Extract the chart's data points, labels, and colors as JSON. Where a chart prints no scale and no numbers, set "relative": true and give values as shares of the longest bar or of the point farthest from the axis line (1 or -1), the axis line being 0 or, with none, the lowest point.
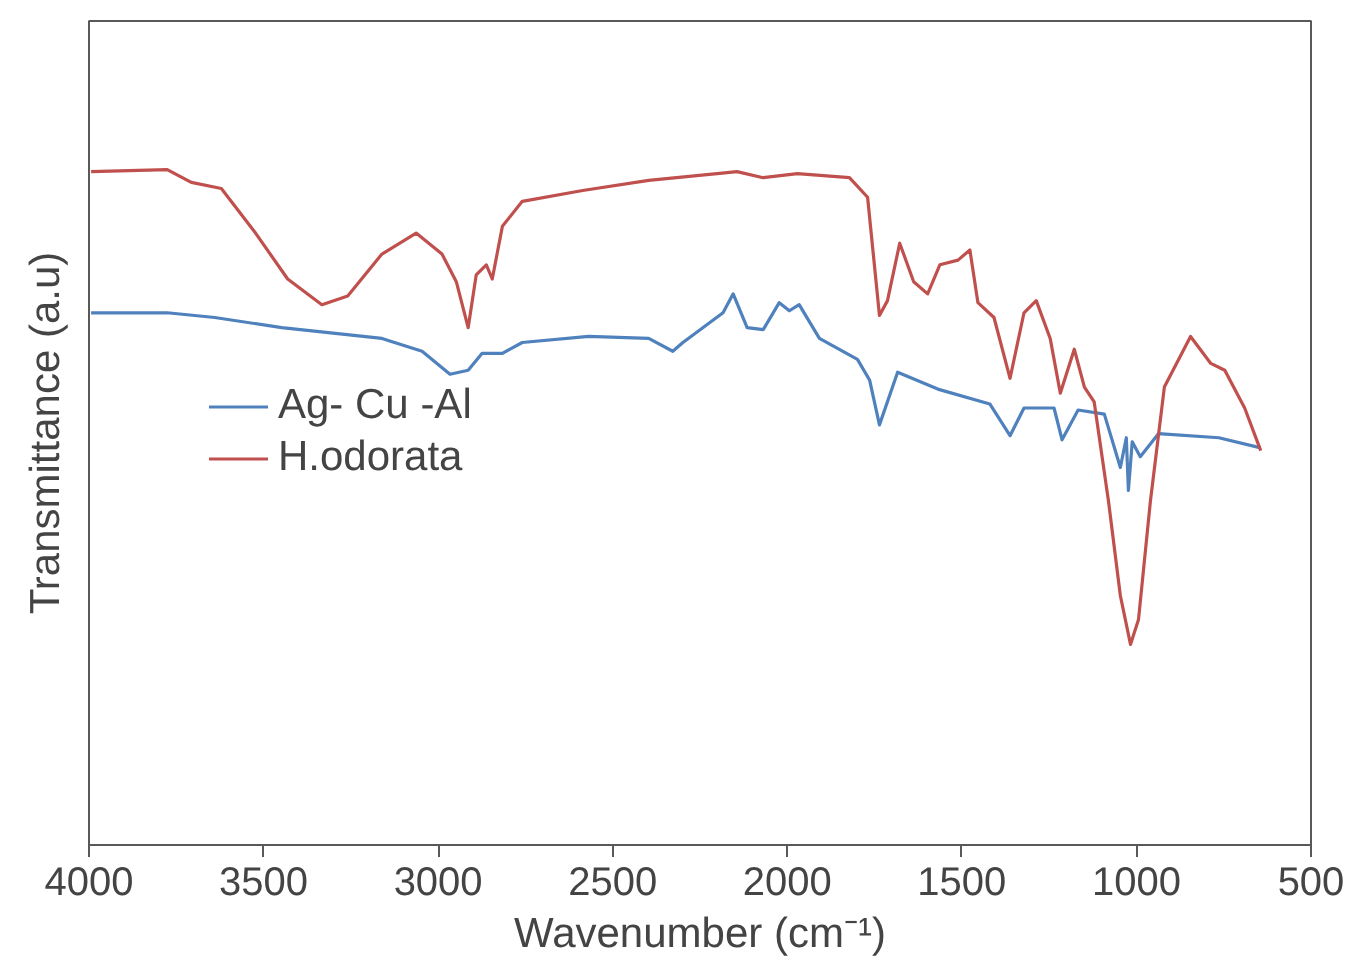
{
  "chart_data": {
    "type": "line",
    "xlabel": "Wavenumber (cm⁻¹)",
    "ylabel": "Transmittance (a.u)",
    "relative": true,
    "xlim": [
      4000,
      500
    ],
    "xticks": [
      4000,
      3500,
      3000,
      2500,
      2000,
      1500,
      1000,
      500
    ],
    "grid": false,
    "legend": "left",
    "marker": "none",
    "line_style": "solid",
    "series": [
      {
        "name": "Ag- Cu -Al",
        "color": "#4f81bd",
        "x": [
          3994,
          3776,
          3640,
          3448,
          3161,
          3046,
          2966,
          2914,
          2874,
          2816,
          2759,
          2569,
          2397,
          2328,
          2299,
          2184,
          2155,
          2115,
          2069,
          2023,
          1994,
          1966,
          1908,
          1799,
          1764,
          1736,
          1684,
          1569,
          1420,
          1362,
          1322,
          1236,
          1213,
          1167,
          1092,
          1046,
          1029,
          1023,
          1012,
          989,
          937,
          764,
          644
        ],
        "values": [
          0.788,
          0.788,
          0.781,
          0.766,
          0.75,
          0.731,
          0.697,
          0.703,
          0.728,
          0.728,
          0.744,
          0.753,
          0.75,
          0.731,
          0.744,
          0.788,
          0.816,
          0.766,
          0.763,
          0.803,
          0.791,
          0.8,
          0.75,
          0.719,
          0.688,
          0.622,
          0.7,
          0.675,
          0.653,
          0.606,
          0.647,
          0.647,
          0.6,
          0.644,
          0.638,
          0.559,
          0.603,
          0.525,
          0.597,
          0.575,
          0.609,
          0.603,
          0.588
        ]
      },
      {
        "name": "H.odorata",
        "color": "#c0504d",
        "x": [
          3994,
          3776,
          3707,
          3621,
          3523,
          3431,
          3333,
          3259,
          3161,
          3063,
          2989,
          2948,
          2914,
          2891,
          2862,
          2845,
          2816,
          2759,
          2586,
          2397,
          2201,
          2144,
          2069,
          1971,
          1822,
          1770,
          1736,
          1713,
          1678,
          1638,
          1598,
          1563,
          1511,
          1477,
          1454,
          1408,
          1362,
          1322,
          1287,
          1247,
          1218,
          1178,
          1149,
          1121,
          1080,
          1046,
          1017,
          994,
          960,
          920,
          845,
          787,
          747,
          690,
          644
        ],
        "values": [
          0.997,
          1.0,
          0.981,
          0.972,
          0.906,
          0.838,
          0.8,
          0.813,
          0.875,
          0.906,
          0.875,
          0.834,
          0.766,
          0.844,
          0.859,
          0.838,
          0.916,
          0.953,
          0.969,
          0.984,
          0.994,
          0.997,
          0.988,
          0.994,
          0.988,
          0.959,
          0.784,
          0.806,
          0.891,
          0.834,
          0.816,
          0.859,
          0.866,
          0.881,
          0.803,
          0.781,
          0.691,
          0.788,
          0.806,
          0.75,
          0.669,
          0.734,
          0.678,
          0.656,
          0.509,
          0.369,
          0.297,
          0.334,
          0.509,
          0.678,
          0.753,
          0.713,
          0.703,
          0.647,
          0.584
        ]
      }
    ]
  }
}
